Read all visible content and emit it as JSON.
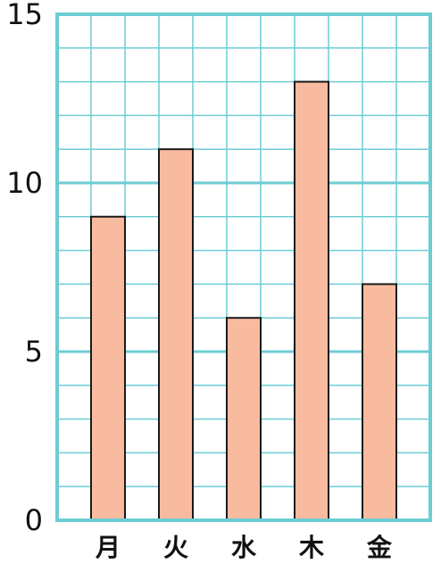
{
  "chart_data": {
    "type": "bar",
    "categories": [
      "月",
      "火",
      "水",
      "木",
      "金"
    ],
    "values": [
      9,
      11,
      6,
      13,
      7
    ],
    "ylim": [
      0,
      15
    ],
    "yticks": [
      "0",
      "5",
      "10",
      "15"
    ],
    "grid": true,
    "colors": {
      "bar_fill": "#f8bba0",
      "bar_stroke": "#1a1a1a",
      "grid": "#6ccdd4",
      "axis": "#6ccdd4"
    }
  }
}
